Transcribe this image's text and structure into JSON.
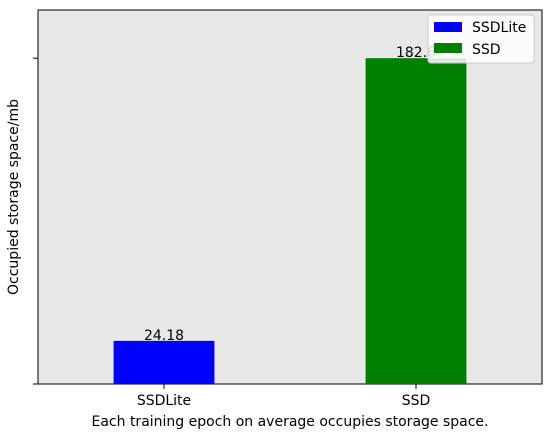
{
  "chart_data": {
    "type": "bar",
    "categories": [
      "SSDLite",
      "SSD"
    ],
    "values": [
      24.18,
      182.6
    ],
    "value_labels": [
      "24.18",
      "182.6"
    ],
    "colors": [
      "#0000ff",
      "#008000"
    ],
    "title": "",
    "xlabel": "Each training epoch on average occupies storage space.",
    "ylabel": "Occupied storage space/mb",
    "ylim": [
      0,
      209.6
    ],
    "y_tick_values": [
      0,
      182.6
    ],
    "y_tick_labels": [
      "",
      ""
    ],
    "grid": false,
    "background": "#e8e8e8",
    "legend": {
      "placement": "top-right",
      "entries": [
        {
          "label": "SSDLite",
          "color": "#0000ff"
        },
        {
          "label": "SSD",
          "color": "#008000"
        }
      ]
    }
  }
}
